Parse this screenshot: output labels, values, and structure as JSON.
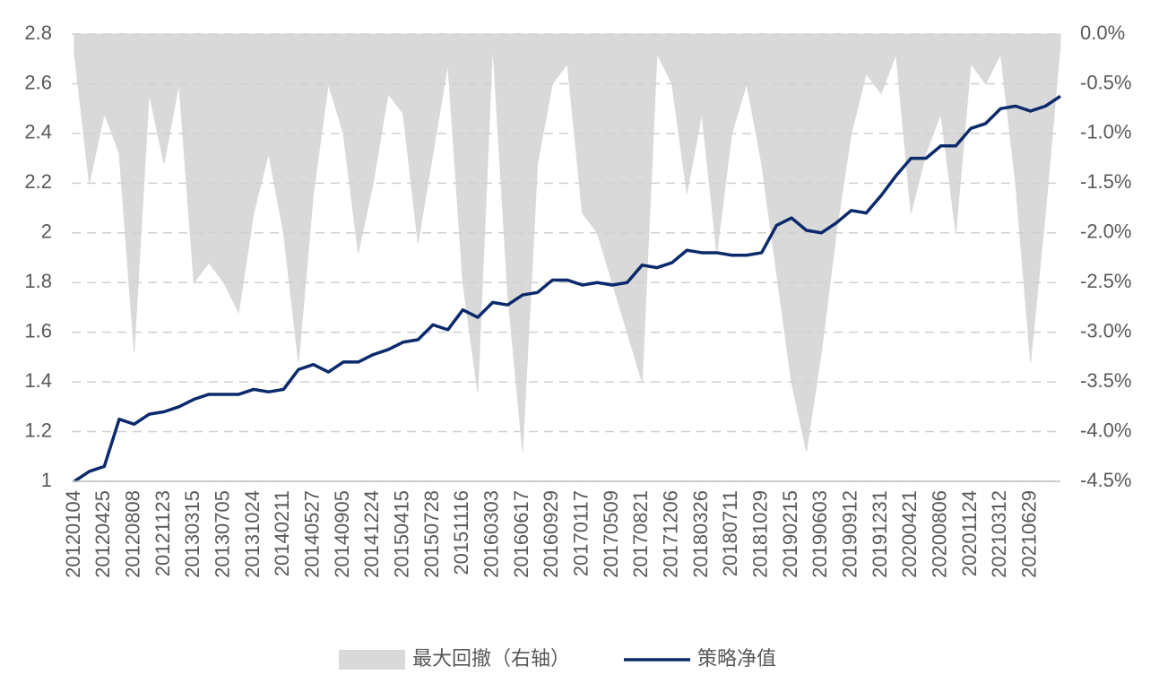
{
  "chart_data": {
    "type": "line_area",
    "categories": [
      "20120104",
      null,
      "20120425",
      null,
      "20120808",
      null,
      "20121123",
      null,
      "20130315",
      null,
      "20130705",
      null,
      "20131024",
      null,
      "20140211",
      null,
      "20140527",
      null,
      "20140905",
      null,
      "20141224",
      null,
      "20150415",
      null,
      "20150728",
      null,
      "20151116",
      null,
      "20160303",
      null,
      "20160617",
      null,
      "20160929",
      null,
      "20170117",
      null,
      "20170509",
      null,
      "20170821",
      null,
      "20171206",
      null,
      "20180326",
      null,
      "20180711",
      null,
      "20181029",
      null,
      "20190215",
      null,
      "20190603",
      null,
      "20190912",
      null,
      "20191231",
      null,
      "20200421",
      null,
      "20200806",
      null,
      "20201124",
      null,
      "20210312",
      null,
      "20210629",
      null,
      null
    ],
    "series": [
      {
        "name": "最大回撤（右轴）",
        "color": "#d9d9d9",
        "axis": "y2",
        "kind": "area",
        "values": [
          -0.2,
          -1.5,
          -0.8,
          -1.2,
          -3.2,
          -0.6,
          -1.3,
          -0.5,
          -2.5,
          -2.3,
          -2.5,
          -2.8,
          -1.8,
          -1.2,
          -2.0,
          -3.3,
          -1.6,
          -0.5,
          -1.0,
          -2.2,
          -1.5,
          -0.6,
          -0.8,
          -2.1,
          -1.2,
          -0.3,
          -2.5,
          -3.6,
          -0.1,
          -2.6,
          -4.2,
          -1.3,
          -0.5,
          -0.3,
          -1.8,
          -2.0,
          -2.5,
          -3.0,
          -3.5,
          -0.2,
          -0.5,
          -1.6,
          -0.8,
          -2.2,
          -1.0,
          -0.5,
          -1.3,
          -2.4,
          -3.5,
          -4.2,
          -3.2,
          -2.0,
          -1.0,
          -0.4,
          -0.6,
          -0.2,
          -1.8,
          -1.2,
          -0.8,
          -2.0,
          -0.3,
          -0.5,
          -0.2,
          -1.5,
          -3.3,
          -1.8,
          -0.1
        ]
      },
      {
        "name": "策略净值",
        "color": "#0b2a6b",
        "kind": "line",
        "values": [
          1.0,
          1.04,
          1.06,
          1.25,
          1.23,
          1.27,
          1.28,
          1.3,
          1.33,
          1.35,
          1.35,
          1.35,
          1.37,
          1.36,
          1.37,
          1.45,
          1.47,
          1.44,
          1.48,
          1.48,
          1.51,
          1.53,
          1.56,
          1.57,
          1.63,
          1.61,
          1.69,
          1.66,
          1.72,
          1.71,
          1.75,
          1.76,
          1.81,
          1.81,
          1.79,
          1.8,
          1.79,
          1.8,
          1.87,
          1.86,
          1.88,
          1.93,
          1.92,
          1.92,
          1.91,
          1.91,
          1.92,
          2.03,
          2.06,
          2.01,
          2.0,
          2.04,
          2.09,
          2.08,
          2.15,
          2.23,
          2.3,
          2.3,
          2.35,
          2.35,
          2.42,
          2.44,
          2.5,
          2.51,
          2.49,
          2.51,
          2.55
        ]
      }
    ],
    "ylim": [
      1,
      2.8
    ],
    "yticks": [
      1,
      1.2,
      1.4,
      1.6,
      1.8,
      2,
      2.2,
      2.4,
      2.6,
      2.8
    ],
    "y2lim": [
      -4.5,
      0
    ],
    "y2ticks": [
      {
        "value": -4.5,
        "label": "-4.5%"
      },
      {
        "value": -4.0,
        "label": "-4.0%"
      },
      {
        "value": -3.5,
        "label": "-3.5%"
      },
      {
        "value": -3.0,
        "label": "-3.0%"
      },
      {
        "value": -2.5,
        "label": "-2.5%"
      },
      {
        "value": -2.0,
        "label": "-2.0%"
      },
      {
        "value": -1.5,
        "label": "-1.5%"
      },
      {
        "value": -1.0,
        "label": "-1.0%"
      },
      {
        "value": -0.5,
        "label": "-0.5%"
      },
      {
        "value": 0,
        "label": "0.0%"
      }
    ],
    "grid": true,
    "legend": "bottom"
  }
}
